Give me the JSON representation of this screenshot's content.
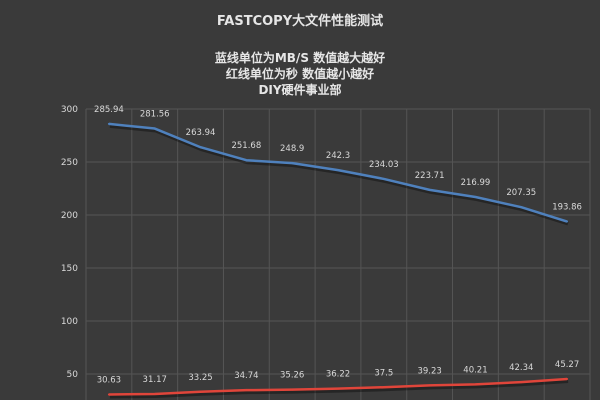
{
  "chart_data": {
    "type": "line",
    "title": "FASTCOPY大文件性能测试",
    "subtitle_lines": [
      "蓝线单位为MB/S 数值越大越好",
      "红线单位为秒 数值越小越好",
      "DIY硬件事业部"
    ],
    "ylim": [
      0,
      300
    ],
    "y_ticks": [
      300,
      250,
      200,
      150,
      100,
      50
    ],
    "grid": true,
    "series": [
      {
        "color": "#4f81bd",
        "values": [
          285.94,
          281.56,
          263.94,
          251.68,
          248.9,
          242.3,
          234.03,
          223.71,
          216.99,
          207.35,
          193.86
        ]
      },
      {
        "color": "#e0453a",
        "values": [
          30.63,
          31.17,
          33.25,
          34.74,
          35.26,
          36.22,
          37.5,
          39.23,
          40.21,
          42.34,
          45.27
        ]
      }
    ],
    "data_labels": {
      "blue": [
        "285.94",
        "281.56",
        "263.94",
        "251.68",
        "248.9",
        "242.3",
        "234.03",
        "223.71",
        "216.99",
        "207.35",
        "193.86"
      ],
      "red": [
        "30.63",
        "31.17",
        "33.25",
        "34.74",
        "35.26",
        "36.22",
        "37.5",
        "39.23",
        "40.21",
        "42.34",
        "45.27"
      ]
    }
  }
}
